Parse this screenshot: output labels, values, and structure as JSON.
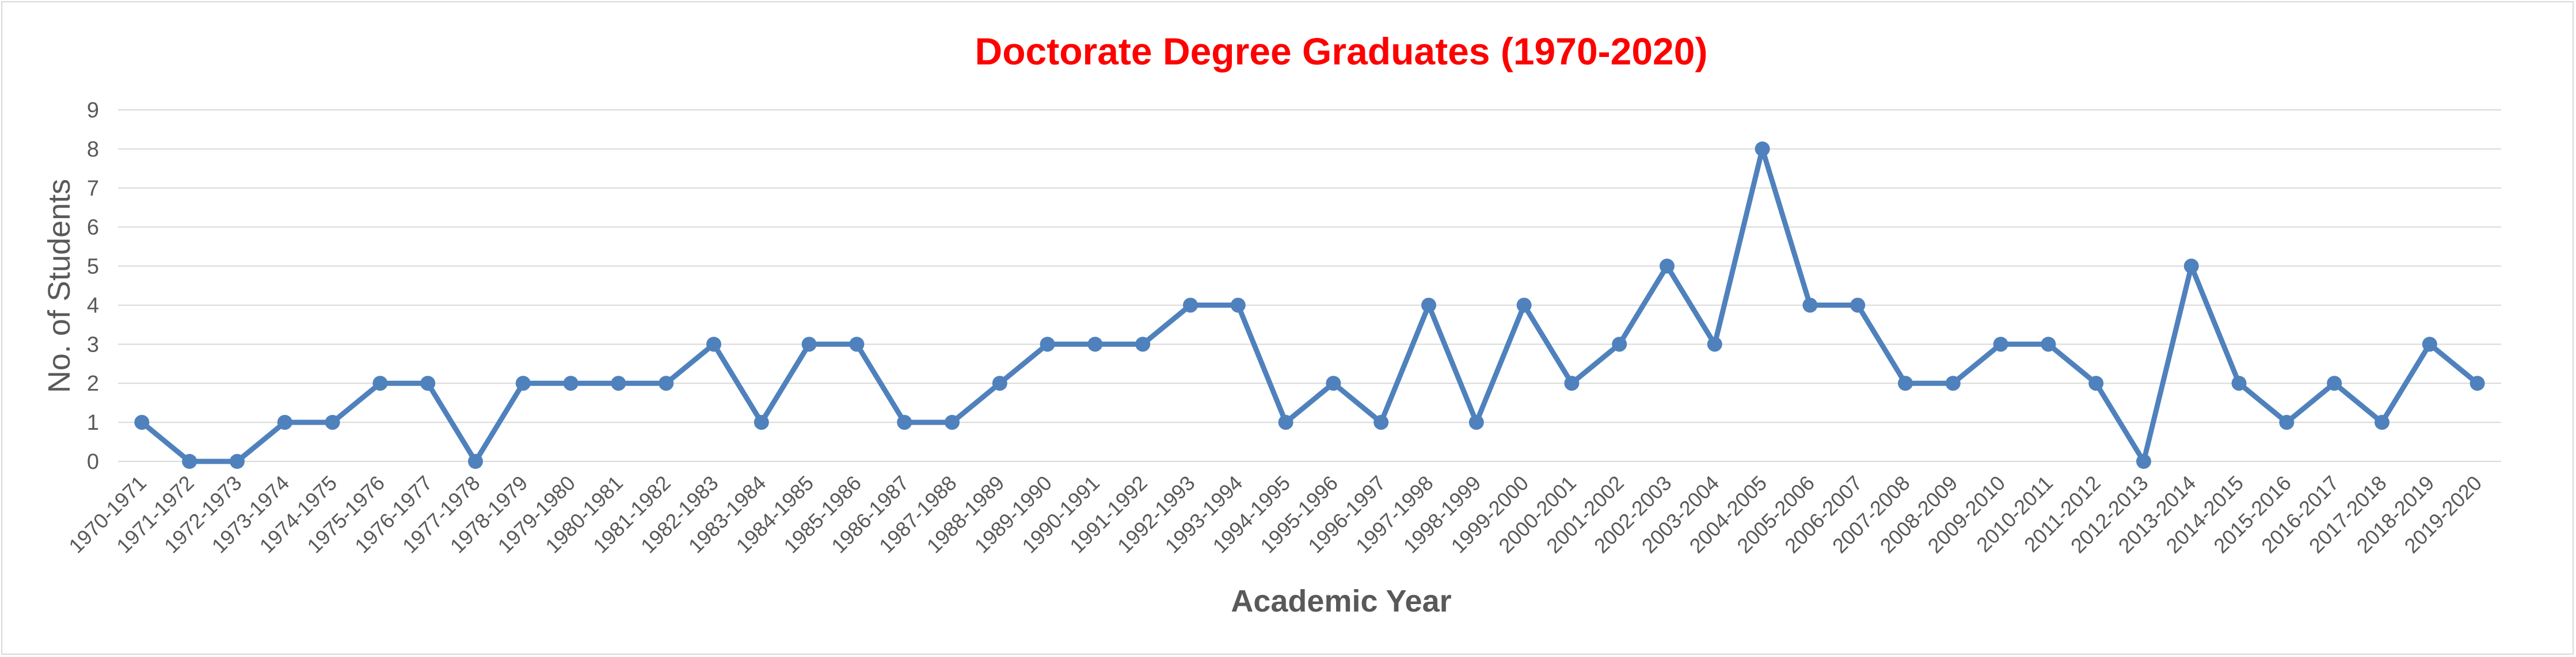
{
  "chart_data": {
    "type": "line",
    "title": "Doctorate Degree Graduates (1970-2020)",
    "xlabel": "Academic Year",
    "ylabel": "No. of Students",
    "ylim": [
      0,
      9
    ],
    "yticks": [
      0,
      1,
      2,
      3,
      4,
      5,
      6,
      7,
      8,
      9
    ],
    "grid": true,
    "legend": "none",
    "line_color": "#4f81bd",
    "title_color": "#ff0000",
    "categories": [
      "1970-1971",
      "1971-1972",
      "1972-1973",
      "1973-1974",
      "1974-1975",
      "1975-1976",
      "1976-1977",
      "1977-1978",
      "1978-1979",
      "1979-1980",
      "1980-1981",
      "1981-1982",
      "1982-1983",
      "1983-1984",
      "1984-1985",
      "1985-1986",
      "1986-1987",
      "1987-1988",
      "1988-1989",
      "1989-1990",
      "1990-1991",
      "1991-1992",
      "1992-1993",
      "1993-1994",
      "1994-1995",
      "1995-1996",
      "1996-1997",
      "1997-1998",
      "1998-1999",
      "1999-2000",
      "2000-2001",
      "2001-2002",
      "2002-2003",
      "2003-2004",
      "2004-2005",
      "2005-2006",
      "2006-2007",
      "2007-2008",
      "2008-2009",
      "2009-2010",
      "2010-2011",
      "2011-2012",
      "2012-2013",
      "2013-2014",
      "2014-2015",
      "2015-2016",
      "2016-2017",
      "2017-2018",
      "2018-2019",
      "2019-2020"
    ],
    "values": [
      1,
      0,
      0,
      1,
      1,
      2,
      2,
      0,
      2,
      2,
      2,
      2,
      3,
      1,
      3,
      3,
      1,
      1,
      2,
      3,
      3,
      3,
      4,
      4,
      1,
      2,
      1,
      4,
      1,
      4,
      2,
      3,
      5,
      3,
      8,
      4,
      4,
      2,
      2,
      3,
      3,
      2,
      0,
      5,
      2,
      1,
      2,
      1,
      3,
      2
    ]
  }
}
